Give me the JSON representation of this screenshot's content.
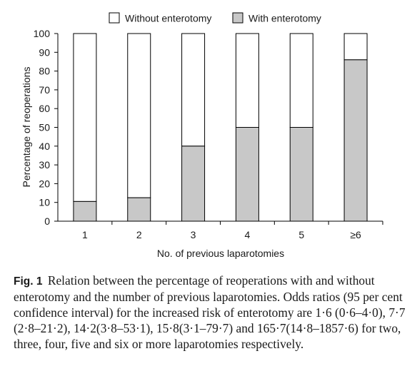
{
  "chart_data": {
    "type": "bar",
    "stacked": true,
    "percent_stacked": true,
    "categories": [
      "1",
      "2",
      "3",
      "4",
      "5",
      "≥6"
    ],
    "series": [
      {
        "name": "With enterotomy",
        "values": [
          10.5,
          12.5,
          40,
          50,
          50,
          86
        ],
        "color": "#c8c8c8"
      },
      {
        "name": "Without enterotomy",
        "values": [
          89.5,
          87.5,
          60,
          50,
          50,
          14
        ],
        "color": "#ffffff"
      }
    ],
    "xlabel": "No. of previous laparotomies",
    "ylabel": "Percentage of reoperations",
    "ylim": [
      0,
      100
    ],
    "yticks": [
      "0",
      "10",
      "20",
      "30",
      "40",
      "50",
      "60",
      "70",
      "80",
      "90",
      "100"
    ],
    "grid": false,
    "legend": {
      "placement": "top",
      "entries": [
        "Without enterotomy",
        "With enterotomy"
      ]
    }
  },
  "caption": {
    "label": "Fig. 1",
    "text": "Relation between the percentage of reoperations with and without enterotomy and the number of previous laparotomies. Odds ratios (95 per cent confidence interval) for the increased risk of enterotomy are 1·6 (0·6–4·0), 7·7 (2·8–21·2), 14·2(3·8–53·1), 15·8(3·1–79·7) and 165·7(14·8–1857·6) for two, three, four, five and six or more laparotomies respectively."
  }
}
